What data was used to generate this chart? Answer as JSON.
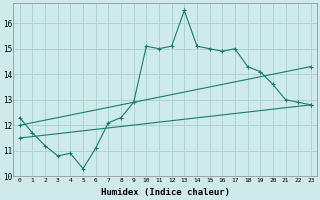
{
  "xlabel": "Humidex (Indice chaleur)",
  "ylabel": "",
  "bg_color": "#ceeaea",
  "grid_color": "#aacfcf",
  "line_color": "#1a7a6e",
  "xlim": [
    -0.5,
    23.5
  ],
  "ylim": [
    10,
    16.8
  ],
  "yticks": [
    10,
    11,
    12,
    13,
    14,
    15,
    16
  ],
  "xticks": [
    0,
    1,
    2,
    3,
    4,
    5,
    6,
    7,
    8,
    9,
    10,
    11,
    12,
    13,
    14,
    15,
    16,
    17,
    18,
    19,
    20,
    21,
    22,
    23
  ],
  "xtick_labels": [
    "0",
    "1",
    "2",
    "3",
    "4",
    "5",
    "6",
    "7",
    "8",
    "9",
    "10",
    "11",
    "12",
    "13",
    "14",
    "15",
    "16",
    "17",
    "18",
    "19",
    "20",
    "21",
    "22",
    "23"
  ],
  "line1_x": [
    0,
    1,
    2,
    3,
    4,
    5,
    6,
    7,
    8,
    9,
    10,
    11,
    12,
    13,
    14,
    15,
    16,
    17,
    18,
    19,
    20,
    21,
    22,
    23
  ],
  "line1_y": [
    12.3,
    11.7,
    11.2,
    10.8,
    10.9,
    10.3,
    11.1,
    12.1,
    12.3,
    12.9,
    15.1,
    15.0,
    15.1,
    16.5,
    15.1,
    15.0,
    14.9,
    15.0,
    14.3,
    14.1,
    13.6,
    13.0,
    12.9,
    12.8
  ],
  "line2_x": [
    0,
    23
  ],
  "line2_y": [
    12.0,
    14.3
  ],
  "line3_x": [
    0,
    23
  ],
  "line3_y": [
    11.5,
    12.8
  ]
}
